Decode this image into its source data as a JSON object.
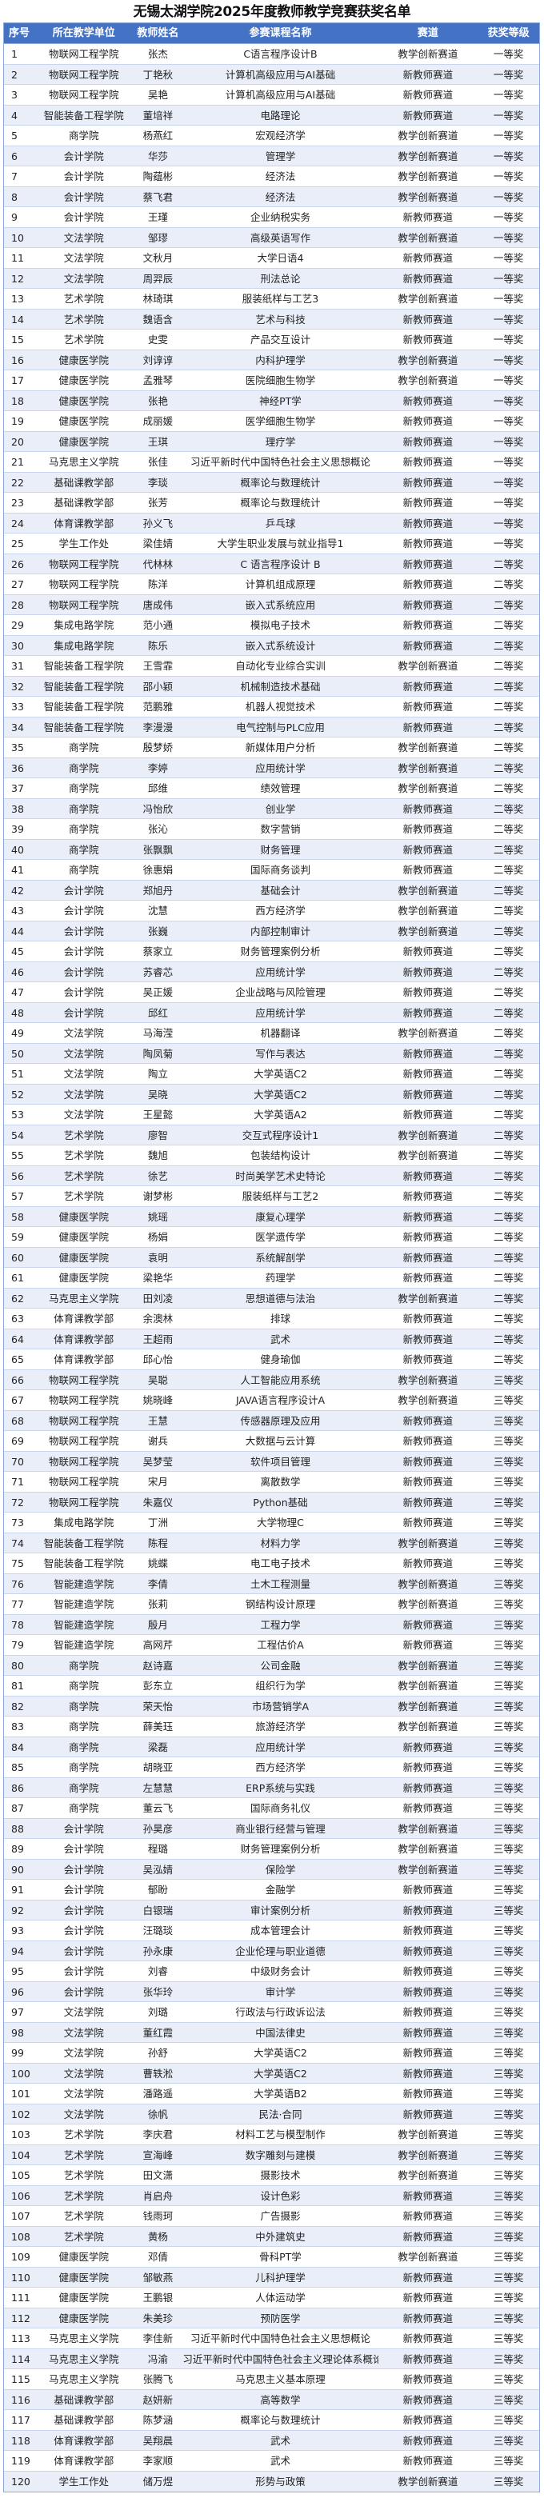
{
  "title": "无锡太湖学院2025年度教师教学竞赛获奖名单",
  "colors": {
    "header_bg": "#4472c4",
    "alt_row_bg": "#e9eef8"
  },
  "columns": [
    "序号",
    "所在教学单位",
    "教师姓名",
    "参赛课程名称",
    "赛道",
    "获奖等级"
  ],
  "rows": [
    [
      "1",
      "物联网工程学院",
      "张杰",
      "C语言程序设计B",
      "教学创新赛道",
      "一等奖"
    ],
    [
      "2",
      "物联网工程学院",
      "丁艳秋",
      "计算机高级应用与AI基础",
      "新教师赛道",
      "一等奖"
    ],
    [
      "3",
      "物联网工程学院",
      "吴艳",
      "计算机高级应用与AI基础",
      "新教师赛道",
      "一等奖"
    ],
    [
      "4",
      "智能装备工程学院",
      "董培祥",
      "电路理论",
      "新教师赛道",
      "一等奖"
    ],
    [
      "5",
      "商学院",
      "杨燕红",
      "宏观经济学",
      "教学创新赛道",
      "一等奖"
    ],
    [
      "6",
      "会计学院",
      "华莎",
      "管理学",
      "教学创新赛道",
      "一等奖"
    ],
    [
      "7",
      "会计学院",
      "陶蕴彬",
      "经济法",
      "教学创新赛道",
      "一等奖"
    ],
    [
      "8",
      "会计学院",
      "蔡飞君",
      "经济法",
      "教学创新赛道",
      "一等奖"
    ],
    [
      "9",
      "会计学院",
      "王瑾",
      "企业纳税实务",
      "新教师赛道",
      "一等奖"
    ],
    [
      "10",
      "文法学院",
      "邹璆",
      "高级英语写作",
      "教学创新赛道",
      "一等奖"
    ],
    [
      "11",
      "文法学院",
      "文秋月",
      "大学日语4",
      "新教师赛道",
      "一等奖"
    ],
    [
      "12",
      "文法学院",
      "周羿辰",
      "刑法总论",
      "新教师赛道",
      "一等奖"
    ],
    [
      "13",
      "艺术学院",
      "林琦琪",
      "服装纸样与工艺3",
      "教学创新赛道",
      "一等奖"
    ],
    [
      "14",
      "艺术学院",
      "魏语含",
      "艺术与科技",
      "新教师赛道",
      "一等奖"
    ],
    [
      "15",
      "艺术学院",
      "史雯",
      "产品交互设计",
      "新教师赛道",
      "一等奖"
    ],
    [
      "16",
      "健康医学院",
      "刘谆谆",
      "内科护理学",
      "教学创新赛道",
      "一等奖"
    ],
    [
      "17",
      "健康医学院",
      "孟雅琴",
      "医院细胞生物学",
      "教学创新赛道",
      "一等奖"
    ],
    [
      "18",
      "健康医学院",
      "张艳",
      "神经PT学",
      "新教师赛道",
      "一等奖"
    ],
    [
      "19",
      "健康医学院",
      "成丽媛",
      "医学细胞生物学",
      "新教师赛道",
      "一等奖"
    ],
    [
      "20",
      "健康医学院",
      "王琪",
      "理疗学",
      "新教师赛道",
      "一等奖"
    ],
    [
      "21",
      "马克思主义学院",
      "张佳",
      "习近平新时代中国特色社会主义思想概论",
      "新教师赛道",
      "一等奖"
    ],
    [
      "22",
      "基础课教学部",
      "李琰",
      "概率论与数理统计",
      "新教师赛道",
      "一等奖"
    ],
    [
      "23",
      "基础课教学部",
      "张芳",
      "概率论与数理统计",
      "新教师赛道",
      "一等奖"
    ],
    [
      "24",
      "体育课教学部",
      "孙义飞",
      "乒乓球",
      "新教师赛道",
      "一等奖"
    ],
    [
      "25",
      "学生工作处",
      "梁佳婧",
      "大学生职业发展与就业指导1",
      "新教师赛道",
      "一等奖"
    ],
    [
      "26",
      "物联网工程学院",
      "代林林",
      "C 语言程序设计 B",
      "新教师赛道",
      "二等奖"
    ],
    [
      "27",
      "物联网工程学院",
      "陈洋",
      "计算机组成原理",
      "新教师赛道",
      "二等奖"
    ],
    [
      "28",
      "物联网工程学院",
      "唐成伟",
      "嵌入式系统应用",
      "新教师赛道",
      "二等奖"
    ],
    [
      "29",
      "集成电路学院",
      "范小通",
      "模拟电子技术",
      "新教师赛道",
      "二等奖"
    ],
    [
      "30",
      "集成电路学院",
      "陈乐",
      "嵌入式系统设计",
      "新教师赛道",
      "二等奖"
    ],
    [
      "31",
      "智能装备工程学院",
      "王雪霏",
      "自动化专业综合实训",
      "教学创新赛道",
      "二等奖"
    ],
    [
      "32",
      "智能装备工程学院",
      "邵小颖",
      "机械制造技术基础",
      "新教师赛道",
      "二等奖"
    ],
    [
      "33",
      "智能装备工程学院",
      "范鹏雅",
      "机器人视觉技术",
      "新教师赛道",
      "二等奖"
    ],
    [
      "34",
      "智能装备工程学院",
      "李漫漫",
      "电气控制与PLC应用",
      "新教师赛道",
      "二等奖"
    ],
    [
      "35",
      "商学院",
      "殷梦娇",
      "新媒体用户分析",
      "教学创新赛道",
      "二等奖"
    ],
    [
      "36",
      "商学院",
      "李婷",
      "应用统计学",
      "教学创新赛道",
      "二等奖"
    ],
    [
      "37",
      "商学院",
      "邱维",
      "绩效管理",
      "教学创新赛道",
      "二等奖"
    ],
    [
      "38",
      "商学院",
      "冯怡欣",
      "创业学",
      "新教师赛道",
      "二等奖"
    ],
    [
      "39",
      "商学院",
      "张沁",
      "数字营销",
      "新教师赛道",
      "二等奖"
    ],
    [
      "40",
      "商学院",
      "张飘飘",
      "财务管理",
      "新教师赛道",
      "二等奖"
    ],
    [
      "41",
      "商学院",
      "徐惠娟",
      "国际商务谈判",
      "新教师赛道",
      "二等奖"
    ],
    [
      "42",
      "会计学院",
      "郑旭丹",
      "基础会计",
      "教学创新赛道",
      "二等奖"
    ],
    [
      "43",
      "会计学院",
      "沈慧",
      "西方经济学",
      "教学创新赛道",
      "二等奖"
    ],
    [
      "44",
      "会计学院",
      "张巍",
      "内部控制审计",
      "教学创新赛道",
      "二等奖"
    ],
    [
      "45",
      "会计学院",
      "蔡家立",
      "财务管理案例分析",
      "新教师赛道",
      "二等奖"
    ],
    [
      "46",
      "会计学院",
      "苏睿芯",
      "应用统计学",
      "新教师赛道",
      "二等奖"
    ],
    [
      "47",
      "会计学院",
      "吴正媛",
      "企业战略与风险管理",
      "新教师赛道",
      "二等奖"
    ],
    [
      "48",
      "会计学院",
      "邱红",
      "应用统计学",
      "新教师赛道",
      "二等奖"
    ],
    [
      "49",
      "文法学院",
      "马海滢",
      "机器翻译",
      "教学创新赛道",
      "二等奖"
    ],
    [
      "50",
      "文法学院",
      "陶凤菊",
      "写作与表达",
      "新教师赛道",
      "二等奖"
    ],
    [
      "51",
      "文法学院",
      "陶立",
      "大学英语C2",
      "新教师赛道",
      "二等奖"
    ],
    [
      "52",
      "文法学院",
      "吴晓",
      "大学英语C2",
      "新教师赛道",
      "二等奖"
    ],
    [
      "53",
      "文法学院",
      "王星懿",
      "大学英语A2",
      "新教师赛道",
      "二等奖"
    ],
    [
      "54",
      "艺术学院",
      "廖智",
      "交互式程序设计1",
      "教学创新赛道",
      "二等奖"
    ],
    [
      "55",
      "艺术学院",
      "魏旭",
      "包装结构设计",
      "教学创新赛道",
      "二等奖"
    ],
    [
      "56",
      "艺术学院",
      "徐艺",
      "时尚美学艺术史特论",
      "新教师赛道",
      "二等奖"
    ],
    [
      "57",
      "艺术学院",
      "谢梦彬",
      "服装纸样与工艺2",
      "新教师赛道",
      "二等奖"
    ],
    [
      "58",
      "健康医学院",
      "姚瑶",
      "康复心理学",
      "新教师赛道",
      "二等奖"
    ],
    [
      "59",
      "健康医学院",
      "杨娟",
      "医学遗传学",
      "新教师赛道",
      "二等奖"
    ],
    [
      "60",
      "健康医学院",
      "袁明",
      "系统解剖学",
      "新教师赛道",
      "二等奖"
    ],
    [
      "61",
      "健康医学院",
      "梁艳华",
      "药理学",
      "新教师赛道",
      "二等奖"
    ],
    [
      "62",
      "马克思主义学院",
      "田刘凌",
      "思想道德与法治",
      "教学创新赛道",
      "二等奖"
    ],
    [
      "63",
      "体育课教学部",
      "余澳林",
      "排球",
      "新教师赛道",
      "二等奖"
    ],
    [
      "64",
      "体育课教学部",
      "王超雨",
      "武术",
      "新教师赛道",
      "二等奖"
    ],
    [
      "65",
      "体育课教学部",
      "邱心怡",
      "健身瑜伽",
      "新教师赛道",
      "二等奖"
    ],
    [
      "66",
      "物联网工程学院",
      "吴聪",
      "人工智能应用系统",
      "教学创新赛道",
      "三等奖"
    ],
    [
      "67",
      "物联网工程学院",
      "姚晓峰",
      "JAVA语言程序设计A",
      "教学创新赛道",
      "三等奖"
    ],
    [
      "68",
      "物联网工程学院",
      "王慧",
      "传感器原理及应用",
      "新教师赛道",
      "三等奖"
    ],
    [
      "69",
      "物联网工程学院",
      "谢兵",
      "大数据与云计算",
      "新教师赛道",
      "三等奖"
    ],
    [
      "70",
      "物联网工程学院",
      "吴梦莹",
      "软件项目管理",
      "新教师赛道",
      "三等奖"
    ],
    [
      "71",
      "物联网工程学院",
      "宋月",
      "离散数学",
      "新教师赛道",
      "三等奖"
    ],
    [
      "72",
      "物联网工程学院",
      "朱嘉仪",
      "Python基础",
      "新教师赛道",
      "三等奖"
    ],
    [
      "73",
      "集成电路学院",
      "丁洲",
      "大学物理C",
      "新教师赛道",
      "三等奖"
    ],
    [
      "74",
      "智能装备工程学院",
      "陈程",
      "材料力学",
      "教学创新赛道",
      "三等奖"
    ],
    [
      "75",
      "智能装备工程学院",
      "姚蝶",
      "电工电子技术",
      "新教师赛道",
      "三等奖"
    ],
    [
      "76",
      "智能建造学院",
      "李倩",
      "土木工程测量",
      "教学创新赛道",
      "三等奖"
    ],
    [
      "77",
      "智能建造学院",
      "张莉",
      "钢结构设计原理",
      "教学创新赛道",
      "三等奖"
    ],
    [
      "78",
      "智能建造学院",
      "殷月",
      "工程力学",
      "新教师赛道",
      "三等奖"
    ],
    [
      "79",
      "智能建造学院",
      "高网芹",
      "工程估价A",
      "新教师赛道",
      "三等奖"
    ],
    [
      "80",
      "商学院",
      "赵诗嘉",
      "公司金融",
      "教学创新赛道",
      "三等奖"
    ],
    [
      "81",
      "商学院",
      "彭东立",
      "组织行为学",
      "教学创新赛道",
      "三等奖"
    ],
    [
      "82",
      "商学院",
      "荣天怡",
      "市场营销学A",
      "教学创新赛道",
      "三等奖"
    ],
    [
      "83",
      "商学院",
      "薛美珏",
      "旅游经济学",
      "教学创新赛道",
      "三等奖"
    ],
    [
      "84",
      "商学院",
      "梁磊",
      "应用统计学",
      "新教师赛道",
      "三等奖"
    ],
    [
      "85",
      "商学院",
      "胡晓亚",
      "西方经济学",
      "新教师赛道",
      "三等奖"
    ],
    [
      "86",
      "商学院",
      "左慧慧",
      "ERP系统与实践",
      "新教师赛道",
      "三等奖"
    ],
    [
      "87",
      "商学院",
      "董云飞",
      "国际商务礼仪",
      "新教师赛道",
      "三等奖"
    ],
    [
      "88",
      "会计学院",
      "孙昊彦",
      "商业银行经营与管理",
      "教学创新赛道",
      "三等奖"
    ],
    [
      "89",
      "会计学院",
      "程璐",
      "财务管理案例分析",
      "教学创新赛道",
      "三等奖"
    ],
    [
      "90",
      "会计学院",
      "吴泓婧",
      "保险学",
      "教学创新赛道",
      "三等奖"
    ],
    [
      "91",
      "会计学院",
      "郁盼",
      "金融学",
      "新教师赛道",
      "三等奖"
    ],
    [
      "92",
      "会计学院",
      "白银瑞",
      "审计案例分析",
      "新教师赛道",
      "三等奖"
    ],
    [
      "93",
      "会计学院",
      "汪璐琰",
      "成本管理会计",
      "新教师赛道",
      "三等奖"
    ],
    [
      "94",
      "会计学院",
      "孙永康",
      "企业伦理与职业道德",
      "新教师赛道",
      "三等奖"
    ],
    [
      "95",
      "会计学院",
      "刘睿",
      "中级财务会计",
      "新教师赛道",
      "三等奖"
    ],
    [
      "96",
      "会计学院",
      "张华玲",
      "审计学",
      "新教师赛道",
      "三等奖"
    ],
    [
      "97",
      "文法学院",
      "刘璐",
      "行政法与行政诉讼法",
      "新教师赛道",
      "三等奖"
    ],
    [
      "98",
      "文法学院",
      "董红霞",
      "中国法律史",
      "新教师赛道",
      "三等奖"
    ],
    [
      "99",
      "文法学院",
      "孙舒",
      "大学英语C2",
      "新教师赛道",
      "三等奖"
    ],
    [
      "100",
      "文法学院",
      "曹轶淞",
      "大学英语C2",
      "新教师赛道",
      "三等奖"
    ],
    [
      "101",
      "文法学院",
      "潘路遥",
      "大学英语B2",
      "新教师赛道",
      "三等奖"
    ],
    [
      "102",
      "文法学院",
      "徐帆",
      "民法·合同",
      "新教师赛道",
      "三等奖"
    ],
    [
      "103",
      "艺术学院",
      "李庆君",
      "材料工艺与模型制作",
      "教学创新赛道",
      "三等奖"
    ],
    [
      "104",
      "艺术学院",
      "宣海峰",
      "数字雕刻与建模",
      "教学创新赛道",
      "三等奖"
    ],
    [
      "105",
      "艺术学院",
      "田文潇",
      "摄影技术",
      "教学创新赛道",
      "三等奖"
    ],
    [
      "106",
      "艺术学院",
      "肖启舟",
      "设计色彩",
      "新教师赛道",
      "三等奖"
    ],
    [
      "107",
      "艺术学院",
      "钱雨珂",
      "广告摄影",
      "新教师赛道",
      "三等奖"
    ],
    [
      "108",
      "艺术学院",
      "黄杨",
      "中外建筑史",
      "新教师赛道",
      "三等奖"
    ],
    [
      "109",
      "健康医学院",
      "邓倩",
      "骨科PT学",
      "教学创新赛道",
      "三等奖"
    ],
    [
      "110",
      "健康医学院",
      "邹敏燕",
      "儿科护理学",
      "新教师赛道",
      "三等奖"
    ],
    [
      "111",
      "健康医学院",
      "王鹏银",
      "人体运动学",
      "新教师赛道",
      "三等奖"
    ],
    [
      "112",
      "健康医学院",
      "朱美珍",
      "预防医学",
      "新教师赛道",
      "三等奖"
    ],
    [
      "113",
      "马克思主义学院",
      "李佳新",
      "习近平新时代中国特色社会主义思想概论",
      "新教师赛道",
      "三等奖"
    ],
    [
      "114",
      "马克思主义学院",
      "冯渝",
      "习近平新时代中国特色社会主义理论体系概论",
      "新教师赛道",
      "三等奖"
    ],
    [
      "115",
      "马克思主义学院",
      "张腾飞",
      "马克思主义基本原理",
      "新教师赛道",
      "三等奖"
    ],
    [
      "116",
      "基础课教学部",
      "赵妍新",
      "高等数学",
      "新教师赛道",
      "三等奖"
    ],
    [
      "117",
      "基础课教学部",
      "陈梦涵",
      "概率论与数理统计",
      "新教师赛道",
      "三等奖"
    ],
    [
      "118",
      "体育课教学部",
      "吴翔晨",
      "武术",
      "新教师赛道",
      "三等奖"
    ],
    [
      "119",
      "体育课教学部",
      "李家顺",
      "武术",
      "新教师赛道",
      "三等奖"
    ],
    [
      "120",
      "学生工作处",
      "储万煜",
      "形势与政策",
      "教学创新赛道",
      "三等奖"
    ]
  ]
}
